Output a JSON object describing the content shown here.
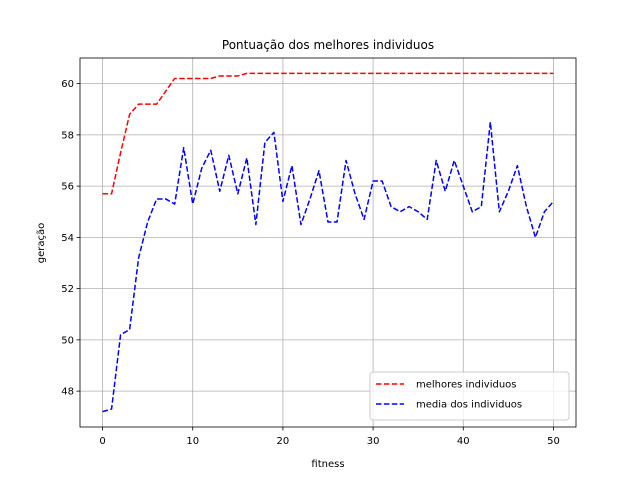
{
  "chart_data": {
    "type": "line",
    "title": "Pontuação dos melhores individuos",
    "xlabel": "fitness",
    "ylabel": "geração",
    "xlim": [
      -2.5,
      52.5
    ],
    "ylim": [
      46.6,
      61.0
    ],
    "xticks": [
      0,
      10,
      20,
      30,
      40,
      50
    ],
    "yticks": [
      48,
      50,
      52,
      54,
      56,
      58,
      60
    ],
    "grid": true,
    "legend_position": "bottom-right",
    "series": [
      {
        "name": "melhores individuos",
        "color": "#ff0000",
        "style": "dashed",
        "x": [
          0,
          1,
          2,
          3,
          4,
          5,
          6,
          7,
          8,
          9,
          10,
          11,
          12,
          13,
          14,
          15,
          16,
          17,
          18,
          19,
          20,
          21,
          22,
          23,
          24,
          25,
          26,
          27,
          28,
          29,
          30,
          31,
          32,
          33,
          34,
          35,
          36,
          37,
          38,
          39,
          40,
          41,
          42,
          43,
          44,
          45,
          46,
          47,
          48,
          49,
          50
        ],
        "values": [
          55.7,
          55.7,
          57.3,
          58.8,
          59.2,
          59.2,
          59.2,
          59.7,
          60.2,
          60.2,
          60.2,
          60.2,
          60.2,
          60.3,
          60.3,
          60.3,
          60.4,
          60.4,
          60.4,
          60.4,
          60.4,
          60.4,
          60.4,
          60.4,
          60.4,
          60.4,
          60.4,
          60.4,
          60.4,
          60.4,
          60.4,
          60.4,
          60.4,
          60.4,
          60.4,
          60.4,
          60.4,
          60.4,
          60.4,
          60.4,
          60.4,
          60.4,
          60.4,
          60.4,
          60.4,
          60.4,
          60.4,
          60.4,
          60.4,
          60.4,
          60.4
        ]
      },
      {
        "name": "media dos individuos",
        "color": "#0000ff",
        "style": "dashed",
        "x": [
          0,
          1,
          2,
          3,
          4,
          5,
          6,
          7,
          8,
          9,
          10,
          11,
          12,
          13,
          14,
          15,
          16,
          17,
          18,
          19,
          20,
          21,
          22,
          23,
          24,
          25,
          26,
          27,
          28,
          29,
          30,
          31,
          32,
          33,
          34,
          35,
          36,
          37,
          38,
          39,
          40,
          41,
          42,
          43,
          44,
          45,
          46,
          47,
          48,
          49,
          50
        ],
        "values": [
          47.2,
          47.3,
          50.2,
          50.4,
          53.2,
          54.6,
          55.5,
          55.5,
          55.3,
          57.5,
          55.3,
          56.7,
          57.4,
          55.8,
          57.2,
          55.7,
          57.1,
          54.5,
          57.7,
          58.1,
          55.4,
          56.8,
          54.5,
          55.5,
          56.6,
          54.6,
          54.6,
          57.0,
          55.7,
          54.7,
          56.2,
          56.2,
          55.2,
          55.0,
          55.2,
          55.0,
          54.7,
          57.0,
          55.8,
          57.0,
          56.0,
          55.0,
          55.2,
          58.5,
          55.0,
          55.8,
          56.8,
          55.2,
          54.0,
          55.0,
          55.4
        ]
      }
    ]
  }
}
